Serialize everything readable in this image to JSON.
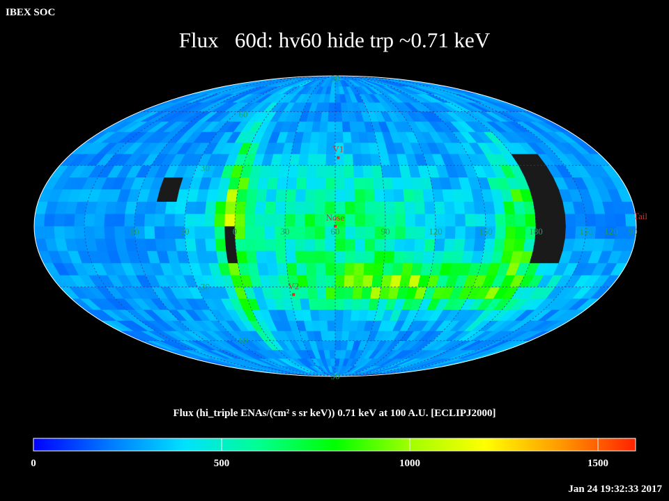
{
  "corner_label": "IBEX SOC",
  "title": "Flux   60d: hv60 hide trp ~0.71 keV",
  "colorbar_title": "Flux (hi_triple ENAs/(cm² s sr keV))  0.71 keV at 100 A.U. [ECLIPJ2000]",
  "timestamp": "Jan 24 19:32:33 2017",
  "colors": {
    "background": "#000000",
    "grid": "#2a3a88",
    "gridline_label": "#20a060",
    "marker": "#d03030",
    "no_data": "#1a1a1a",
    "colorbar_stops": [
      "#0000ff",
      "#0078ff",
      "#00e0ff",
      "#00ff90",
      "#00ff00",
      "#a0ff00",
      "#ffff00",
      "#ff9900",
      "#ff2200"
    ]
  },
  "chart_data": {
    "type": "heatmap",
    "projection": "mollweide",
    "coordinate_frame": "ECLIPJ2000",
    "energy": "0.71 keV",
    "pixel_deg": 6,
    "color_scale": {
      "min": 0,
      "max": 1600,
      "ticks": [
        0,
        500,
        1000,
        1500
      ]
    },
    "longitude_labels": [
      {
        "lon": -120,
        "text": "60"
      },
      {
        "lon": -90,
        "text": "30"
      },
      {
        "lon": -60,
        "text": "0"
      },
      {
        "lon": -30,
        "text": "30"
      },
      {
        "lon": 0,
        "text": "60"
      },
      {
        "lon": 30,
        "text": "90"
      },
      {
        "lon": 60,
        "text": "120"
      },
      {
        "lon": 90,
        "text": "150"
      },
      {
        "lon": 120,
        "text": "180"
      },
      {
        "lon": 150,
        "text": "150"
      },
      {
        "lon": 165,
        "text": "120"
      },
      {
        "lon": 178,
        "text": "90"
      }
    ],
    "latitude_labels": [
      {
        "lat": 90,
        "text": "90"
      },
      {
        "lat": 60,
        "text": "60"
      },
      {
        "lat": 30,
        "text": "30"
      },
      {
        "lat": -30,
        "text": "30"
      },
      {
        "lat": -60,
        "text": "60"
      },
      {
        "lat": -90,
        "text": "90"
      }
    ],
    "markers": [
      {
        "name": "V1",
        "lon": 2,
        "lat": 34
      },
      {
        "name": "Nose",
        "lon": 0,
        "lat": 0
      },
      {
        "name": "V2",
        "lon": -28,
        "lat": -34
      },
      {
        "name": "Tail",
        "lon": 180,
        "lat": 0
      }
    ],
    "no_data_regions": [
      {
        "lon_min": 120,
        "lon_max": 140,
        "lat_min": -16,
        "lat_max": 36
      },
      {
        "lon_min": -105,
        "lon_max": -98,
        "lat_min": 10,
        "lat_max": 24
      },
      {
        "lon_min": -66,
        "lon_max": -60,
        "lat_min": -20,
        "lat_max": 0
      }
    ],
    "flux_features": [
      {
        "lon": 0,
        "lat": 0,
        "width_deg": 70,
        "height_deg": 30,
        "peak_flux": 640
      },
      {
        "lon": 50,
        "lat": -30,
        "width_deg": 80,
        "height_deg": 12,
        "peak_flux": 780
      },
      {
        "lon": 112,
        "lat": 0,
        "width_deg": 14,
        "height_deg": 40,
        "peak_flux": 780
      },
      {
        "lon": -62,
        "lat": 0,
        "width_deg": 8,
        "height_deg": 55,
        "peak_flux": 850
      }
    ],
    "background_flux": 260
  }
}
